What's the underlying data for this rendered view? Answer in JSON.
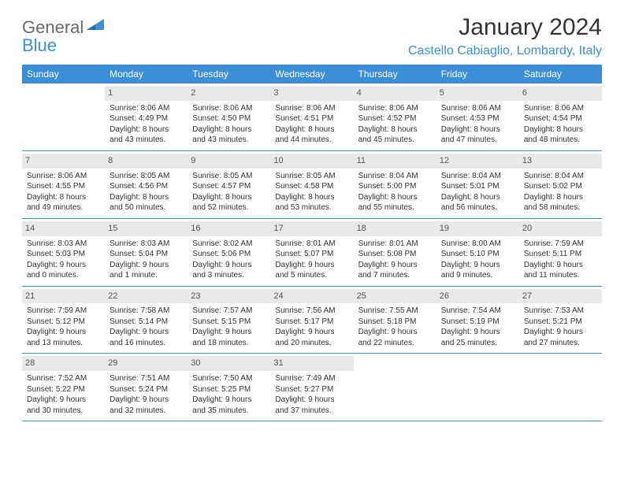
{
  "logo": {
    "text1": "General",
    "text2": "Blue"
  },
  "title": "January 2024",
  "location": "Castello Cabiaglio, Lombardy, Italy",
  "colors": {
    "accent": "#3a8fd6",
    "header_bg": "#3a8fd6",
    "daynum_bg": "#e9e9e9",
    "text": "#333333",
    "logo_gray": "#6a6a6a"
  },
  "day_names": [
    "Sunday",
    "Monday",
    "Tuesday",
    "Wednesday",
    "Thursday",
    "Friday",
    "Saturday"
  ],
  "weeks": [
    [
      null,
      {
        "n": "1",
        "sr": "8:06 AM",
        "ss": "4:49 PM",
        "dl": "8 hours and 43 minutes."
      },
      {
        "n": "2",
        "sr": "8:06 AM",
        "ss": "4:50 PM",
        "dl": "8 hours and 43 minutes."
      },
      {
        "n": "3",
        "sr": "8:06 AM",
        "ss": "4:51 PM",
        "dl": "8 hours and 44 minutes."
      },
      {
        "n": "4",
        "sr": "8:06 AM",
        "ss": "4:52 PM",
        "dl": "8 hours and 45 minutes."
      },
      {
        "n": "5",
        "sr": "8:06 AM",
        "ss": "4:53 PM",
        "dl": "8 hours and 47 minutes."
      },
      {
        "n": "6",
        "sr": "8:06 AM",
        "ss": "4:54 PM",
        "dl": "8 hours and 48 minutes."
      }
    ],
    [
      {
        "n": "7",
        "sr": "8:06 AM",
        "ss": "4:55 PM",
        "dl": "8 hours and 49 minutes."
      },
      {
        "n": "8",
        "sr": "8:05 AM",
        "ss": "4:56 PM",
        "dl": "8 hours and 50 minutes."
      },
      {
        "n": "9",
        "sr": "8:05 AM",
        "ss": "4:57 PM",
        "dl": "8 hours and 52 minutes."
      },
      {
        "n": "10",
        "sr": "8:05 AM",
        "ss": "4:58 PM",
        "dl": "8 hours and 53 minutes."
      },
      {
        "n": "11",
        "sr": "8:04 AM",
        "ss": "5:00 PM",
        "dl": "8 hours and 55 minutes."
      },
      {
        "n": "12",
        "sr": "8:04 AM",
        "ss": "5:01 PM",
        "dl": "8 hours and 56 minutes."
      },
      {
        "n": "13",
        "sr": "8:04 AM",
        "ss": "5:02 PM",
        "dl": "8 hours and 58 minutes."
      }
    ],
    [
      {
        "n": "14",
        "sr": "8:03 AM",
        "ss": "5:03 PM",
        "dl": "9 hours and 0 minutes."
      },
      {
        "n": "15",
        "sr": "8:03 AM",
        "ss": "5:04 PM",
        "dl": "9 hours and 1 minute."
      },
      {
        "n": "16",
        "sr": "8:02 AM",
        "ss": "5:06 PM",
        "dl": "9 hours and 3 minutes."
      },
      {
        "n": "17",
        "sr": "8:01 AM",
        "ss": "5:07 PM",
        "dl": "9 hours and 5 minutes."
      },
      {
        "n": "18",
        "sr": "8:01 AM",
        "ss": "5:08 PM",
        "dl": "9 hours and 7 minutes."
      },
      {
        "n": "19",
        "sr": "8:00 AM",
        "ss": "5:10 PM",
        "dl": "9 hours and 9 minutes."
      },
      {
        "n": "20",
        "sr": "7:59 AM",
        "ss": "5:11 PM",
        "dl": "9 hours and 11 minutes."
      }
    ],
    [
      {
        "n": "21",
        "sr": "7:59 AM",
        "ss": "5:12 PM",
        "dl": "9 hours and 13 minutes."
      },
      {
        "n": "22",
        "sr": "7:58 AM",
        "ss": "5:14 PM",
        "dl": "9 hours and 16 minutes."
      },
      {
        "n": "23",
        "sr": "7:57 AM",
        "ss": "5:15 PM",
        "dl": "9 hours and 18 minutes."
      },
      {
        "n": "24",
        "sr": "7:56 AM",
        "ss": "5:17 PM",
        "dl": "9 hours and 20 minutes."
      },
      {
        "n": "25",
        "sr": "7:55 AM",
        "ss": "5:18 PM",
        "dl": "9 hours and 22 minutes."
      },
      {
        "n": "26",
        "sr": "7:54 AM",
        "ss": "5:19 PM",
        "dl": "9 hours and 25 minutes."
      },
      {
        "n": "27",
        "sr": "7:53 AM",
        "ss": "5:21 PM",
        "dl": "9 hours and 27 minutes."
      }
    ],
    [
      {
        "n": "28",
        "sr": "7:52 AM",
        "ss": "5:22 PM",
        "dl": "9 hours and 30 minutes."
      },
      {
        "n": "29",
        "sr": "7:51 AM",
        "ss": "5:24 PM",
        "dl": "9 hours and 32 minutes."
      },
      {
        "n": "30",
        "sr": "7:50 AM",
        "ss": "5:25 PM",
        "dl": "9 hours and 35 minutes."
      },
      {
        "n": "31",
        "sr": "7:49 AM",
        "ss": "5:27 PM",
        "dl": "9 hours and 37 minutes."
      },
      null,
      null,
      null
    ]
  ],
  "labels": {
    "sunrise": "Sunrise:",
    "sunset": "Sunset:",
    "daylight": "Daylight:"
  }
}
